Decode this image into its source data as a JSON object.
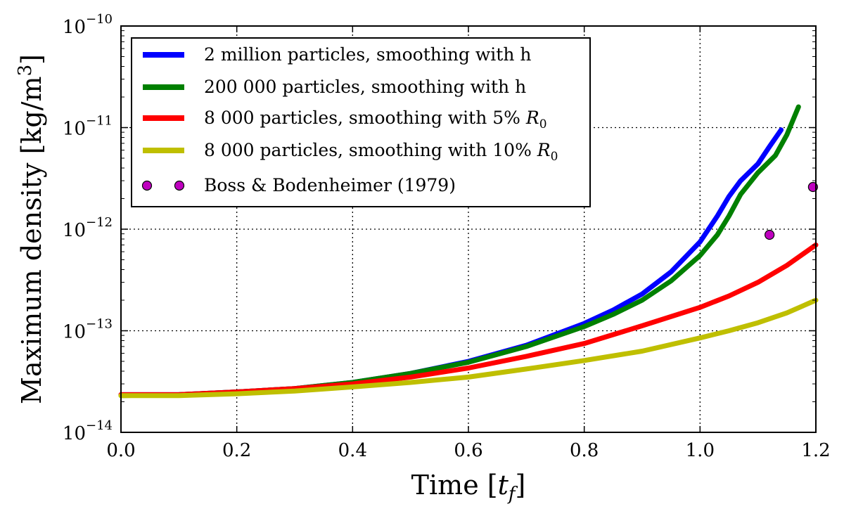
{
  "chart_data": {
    "type": "line",
    "title": "",
    "xlabel": "Time [t_f]",
    "ylabel": "Maximum density [kg/m^3]",
    "xlim": [
      0.0,
      1.2
    ],
    "ylim": [
      1e-14,
      1e-10
    ],
    "yscale": "log",
    "grid": true,
    "legend_position": "top-left",
    "x_ticks": [
      {
        "value": 0.0,
        "label": "0.0"
      },
      {
        "value": 0.2,
        "label": "0.2"
      },
      {
        "value": 0.4,
        "label": "0.4"
      },
      {
        "value": 0.6,
        "label": "0.6"
      },
      {
        "value": 0.8,
        "label": "0.8"
      },
      {
        "value": 1.0,
        "label": "1.0"
      },
      {
        "value": 1.2,
        "label": "1.2"
      }
    ],
    "y_ticks": [
      {
        "value": 1e-14,
        "base": "10",
        "exp": "−14"
      },
      {
        "value": 1e-13,
        "base": "10",
        "exp": "−13"
      },
      {
        "value": 1e-12,
        "base": "10",
        "exp": "−12"
      },
      {
        "value": 1e-11,
        "base": "10",
        "exp": "−11"
      },
      {
        "value": 1e-10,
        "base": "10",
        "exp": "−10"
      }
    ],
    "series": [
      {
        "name": "2 million particles, smoothing with h",
        "color": "#0000ff",
        "x": [
          0.0,
          0.1,
          0.2,
          0.3,
          0.4,
          0.5,
          0.6,
          0.7,
          0.8,
          0.85,
          0.9,
          0.95,
          1.0,
          1.03,
          1.05,
          1.07,
          1.1,
          1.12,
          1.14
        ],
        "y": [
          2.35e-14,
          2.35e-14,
          2.5e-14,
          2.7e-14,
          3.1e-14,
          3.8e-14,
          5e-14,
          7.2e-14,
          1.18e-13,
          1.6e-13,
          2.3e-13,
          3.8e-13,
          7.5e-13,
          1.35e-12,
          2.1e-12,
          3e-12,
          4.4e-12,
          6.5e-12,
          9.5e-12
        ]
      },
      {
        "name": "200 000 particles, smoothing with h",
        "color": "#008000",
        "x": [
          0.0,
          0.1,
          0.2,
          0.3,
          0.4,
          0.5,
          0.6,
          0.7,
          0.8,
          0.85,
          0.9,
          0.95,
          1.0,
          1.03,
          1.05,
          1.07,
          1.1,
          1.13,
          1.15,
          1.17
        ],
        "y": [
          2.3e-14,
          2.35e-14,
          2.5e-14,
          2.7e-14,
          3.1e-14,
          3.8e-14,
          4.9e-14,
          7e-14,
          1.1e-13,
          1.45e-13,
          2e-13,
          3.1e-13,
          5.5e-13,
          8.8e-13,
          1.35e-12,
          2.2e-12,
          3.6e-12,
          5.3e-12,
          8.5e-12,
          1.6e-11
        ]
      },
      {
        "name": "8 000 particles, smoothing with 5% R_0",
        "color": "#ff0000",
        "x": [
          0.0,
          0.1,
          0.2,
          0.3,
          0.4,
          0.5,
          0.6,
          0.7,
          0.8,
          0.9,
          1.0,
          1.05,
          1.1,
          1.15,
          1.2
        ],
        "y": [
          2.35e-14,
          2.35e-14,
          2.5e-14,
          2.7e-14,
          3e-14,
          3.5e-14,
          4.3e-14,
          5.6e-14,
          7.5e-14,
          1.12e-13,
          1.7e-13,
          2.2e-13,
          3e-13,
          4.4e-13,
          7e-13
        ]
      },
      {
        "name": "8 000 particles, smoothing with 10% R_0",
        "color": "#bfbf00",
        "x": [
          0.0,
          0.1,
          0.2,
          0.3,
          0.4,
          0.5,
          0.6,
          0.7,
          0.8,
          0.9,
          1.0,
          1.05,
          1.1,
          1.15,
          1.2
        ],
        "y": [
          2.3e-14,
          2.3e-14,
          2.4e-14,
          2.55e-14,
          2.8e-14,
          3.1e-14,
          3.5e-14,
          4.2e-14,
          5.1e-14,
          6.3e-14,
          8.5e-14,
          1e-13,
          1.2e-13,
          1.5e-13,
          2e-13
        ]
      }
    ],
    "points": {
      "name": "Boss & Bodenheimer (1979)",
      "color": "#bf00bf",
      "x": [
        1.12,
        1.195
      ],
      "y": [
        8.8e-13,
        2.6e-12
      ]
    }
  }
}
